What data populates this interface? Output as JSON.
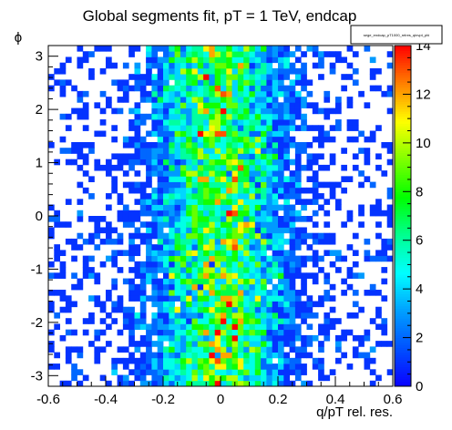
{
  "chart_data": {
    "type": "heatmap",
    "title": "Global segments fit, pT = 1 TeV, endcap",
    "xlabel": "q/pT rel. res.",
    "ylabel": "ϕ",
    "legend_text": "sege_endcap_pT1000_relres_qinvpt_phi",
    "xlim": [
      -0.6,
      0.6
    ],
    "ylim": [
      -3.2,
      3.2
    ],
    "zlim": [
      0,
      14
    ],
    "xticks": [
      "-0.6",
      "-0.4",
      "-0.2",
      "0",
      "0.2",
      "0.4",
      "0.6"
    ],
    "yticks": [
      "-3",
      "-2",
      "-1",
      "0",
      "1",
      "2",
      "3"
    ],
    "zticks": [
      "0",
      "2",
      "4",
      "6",
      "8",
      "10",
      "12",
      "14"
    ],
    "bins": {
      "nx": 60,
      "ny": 60
    },
    "distribution": {
      "x_center": 0.0,
      "x_sigma": 0.13,
      "peak_count": 8,
      "max_count": 14,
      "uniform_in_phi": true
    },
    "colors": {
      "palette": [
        "#0a00ff",
        "#0050ff",
        "#00a0ff",
        "#00ffff",
        "#00ff90",
        "#00ff00",
        "#80ff00",
        "#ffff00",
        "#ff8000",
        "#ff0000"
      ],
      "frame": "#000000",
      "empty_bin": "#ffffff"
    }
  }
}
